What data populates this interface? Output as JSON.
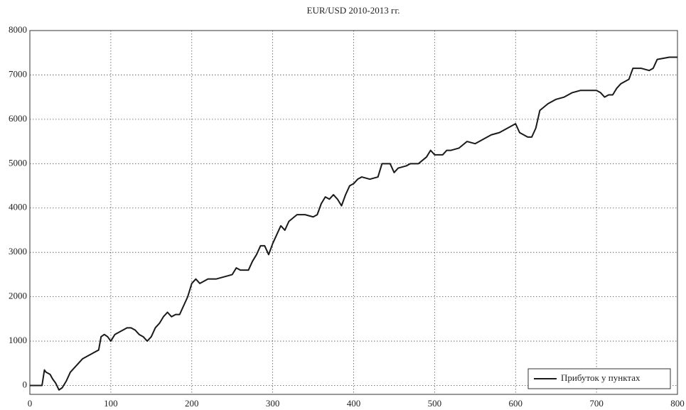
{
  "chart_data": {
    "type": "line",
    "title": "EUR/USD 2010-2013 гг.",
    "x": [
      0,
      10,
      15,
      18,
      20,
      25,
      28,
      32,
      36,
      40,
      45,
      50,
      55,
      60,
      65,
      70,
      75,
      80,
      85,
      88,
      92,
      96,
      100,
      105,
      110,
      115,
      120,
      125,
      130,
      135,
      140,
      145,
      150,
      155,
      160,
      165,
      170,
      175,
      180,
      185,
      190,
      195,
      200,
      205,
      210,
      215,
      220,
      230,
      240,
      250,
      255,
      260,
      270,
      275,
      280,
      285,
      290,
      295,
      300,
      305,
      310,
      315,
      320,
      330,
      340,
      350,
      355,
      360,
      365,
      370,
      375,
      380,
      385,
      390,
      395,
      400,
      405,
      410,
      420,
      430,
      435,
      445,
      450,
      455,
      465,
      470,
      480,
      490,
      495,
      500,
      510,
      515,
      520,
      530,
      540,
      550,
      560,
      570,
      580,
      590,
      600,
      605,
      610,
      615,
      620,
      625,
      630,
      640,
      650,
      660,
      670,
      680,
      690,
      700,
      705,
      710,
      715,
      720,
      725,
      730,
      740,
      745,
      755,
      765,
      770,
      775,
      790,
      800
    ],
    "series": [
      {
        "name": "Прибуток у пунктах",
        "color": "#1a1a1a",
        "values": [
          0,
          0,
          0,
          350,
          300,
          250,
          150,
          50,
          -100,
          -50,
          100,
          300,
          400,
          500,
          600,
          650,
          700,
          750,
          800,
          1100,
          1150,
          1100,
          1000,
          1150,
          1200,
          1250,
          1300,
          1300,
          1250,
          1150,
          1100,
          1000,
          1100,
          1300,
          1400,
          1550,
          1650,
          1550,
          1600,
          1600,
          1800,
          2000,
          2300,
          2400,
          2300,
          2350,
          2400,
          2400,
          2450,
          2500,
          2650,
          2600,
          2600,
          2800,
          2950,
          3150,
          3150,
          2950,
          3200,
          3400,
          3600,
          3500,
          3700,
          3850,
          3850,
          3800,
          3850,
          4100,
          4250,
          4200,
          4300,
          4200,
          4050,
          4300,
          4500,
          4550,
          4650,
          4700,
          4650,
          4700,
          5000,
          5000,
          4800,
          4900,
          4950,
          5000,
          5000,
          5150,
          5300,
          5200,
          5200,
          5300,
          5300,
          5350,
          5500,
          5450,
          5550,
          5650,
          5700,
          5800,
          5900,
          5700,
          5650,
          5600,
          5600,
          5800,
          6200,
          6350,
          6450,
          6500,
          6600,
          6650,
          6650,
          6650,
          6600,
          6500,
          6550,
          6550,
          6700,
          6800,
          6900,
          7150,
          7150,
          7100,
          7150,
          7350,
          7400,
          7400
        ]
      }
    ],
    "xlim": [
      0,
      800
    ],
    "xticks": [
      0,
      100,
      200,
      300,
      400,
      500,
      600,
      700,
      800
    ],
    "ylim": [
      -200,
      8000
    ],
    "yticks": [
      0,
      1000,
      2000,
      3000,
      4000,
      5000,
      6000,
      7000,
      8000
    ],
    "grid": true,
    "legend": "lower right"
  }
}
